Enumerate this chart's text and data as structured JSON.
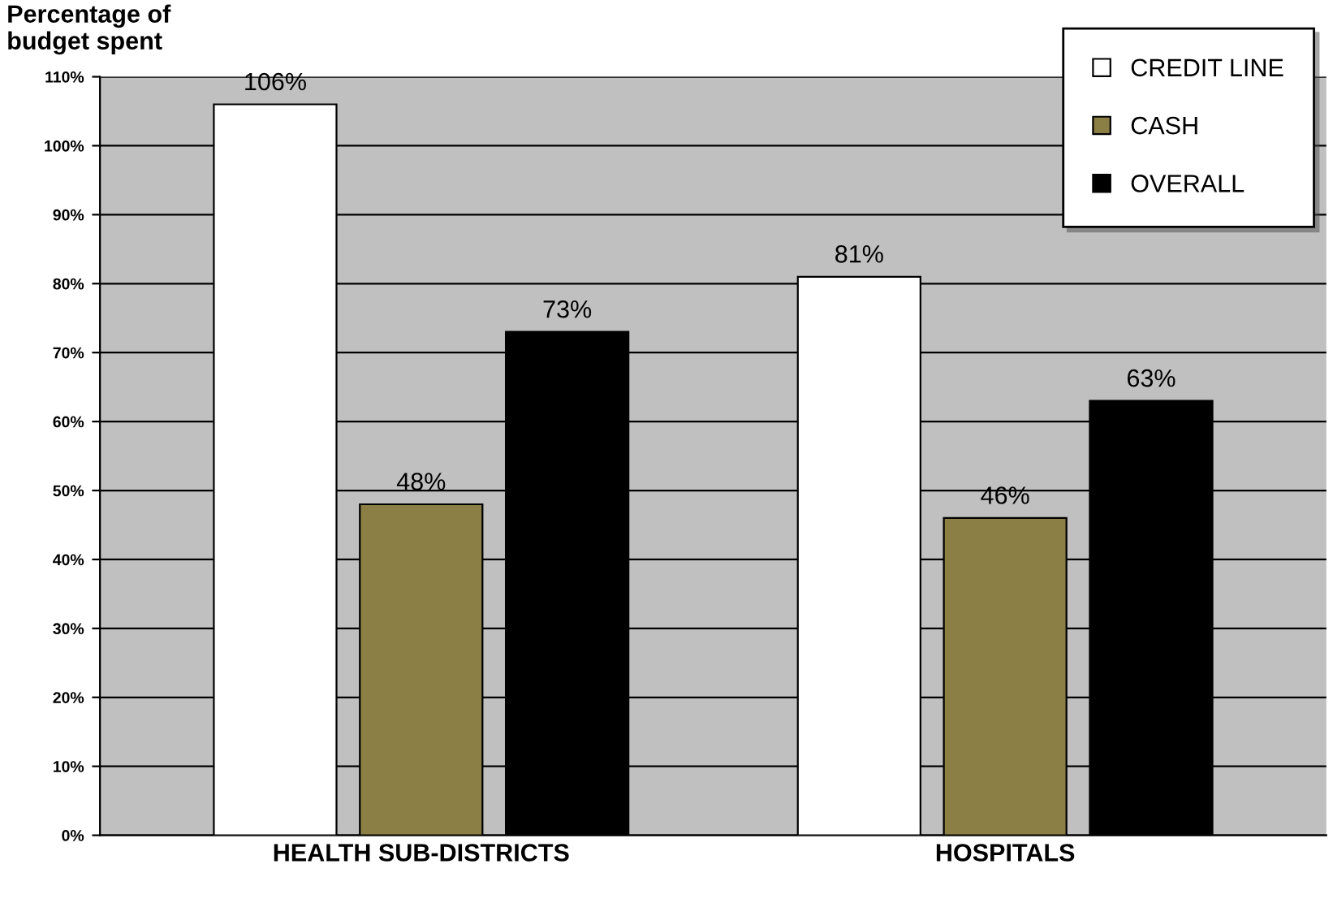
{
  "chart_data": {
    "type": "bar",
    "ylabel": "Percentage of\nbudget spent",
    "categories": [
      "HEALTH SUB-DISTRICTS",
      "HOSPITALS"
    ],
    "series": [
      {
        "name": "CREDIT LINE",
        "color": "#ffffff",
        "values": [
          106,
          81
        ],
        "value_labels": [
          "106%",
          "81%"
        ]
      },
      {
        "name": "CASH",
        "color": "#8b7f45",
        "values": [
          48,
          46
        ],
        "value_labels": [
          "48%",
          "46%"
        ]
      },
      {
        "name": "OVERALL",
        "color": "#000000",
        "values": [
          73,
          63
        ],
        "value_labels": [
          "73%",
          "63%"
        ]
      }
    ],
    "ylim": [
      0,
      110
    ],
    "yticks": [
      {
        "value": 0,
        "label": "0%"
      },
      {
        "value": 10,
        "label": "10%"
      },
      {
        "value": 20,
        "label": "20%"
      },
      {
        "value": 30,
        "label": "30%"
      },
      {
        "value": 40,
        "label": "40%"
      },
      {
        "value": 50,
        "label": "50%"
      },
      {
        "value": 60,
        "label": "60%"
      },
      {
        "value": 70,
        "label": "70%"
      },
      {
        "value": 80,
        "label": "80%"
      },
      {
        "value": 90,
        "label": "90%"
      },
      {
        "value": 100,
        "label": "100%"
      },
      {
        "value": 110,
        "label": "110%"
      }
    ],
    "grid": "y",
    "legend": "top right"
  }
}
